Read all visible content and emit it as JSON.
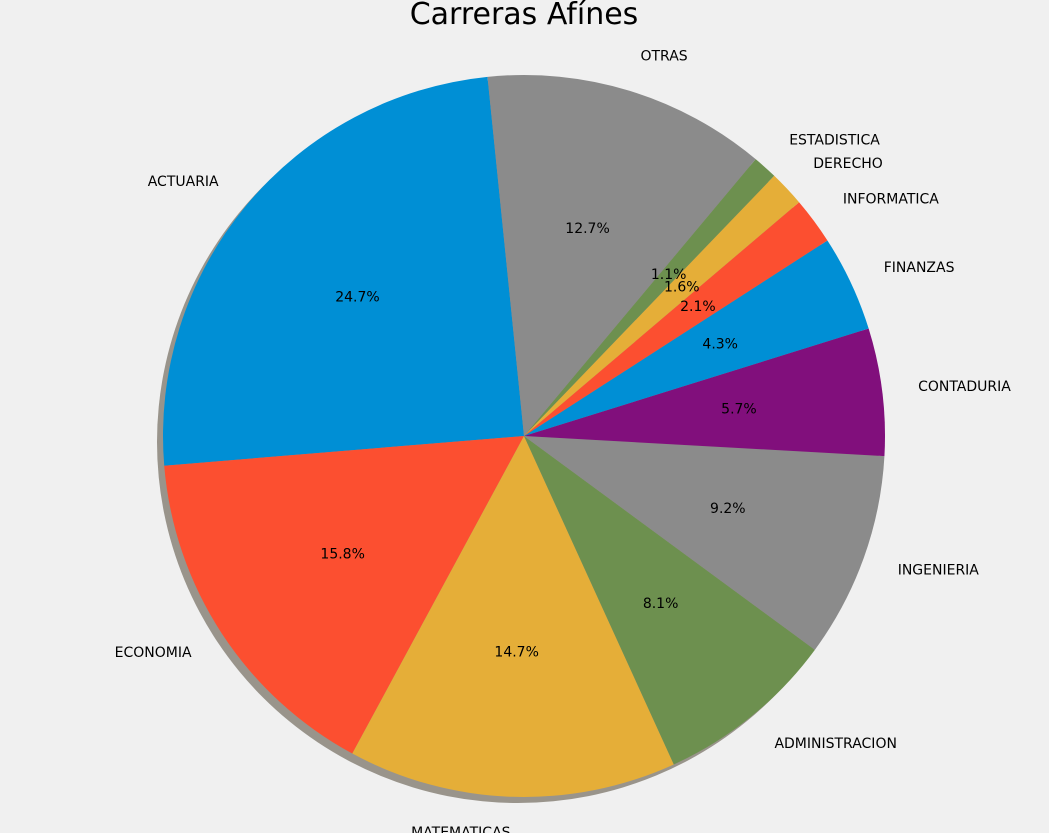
{
  "chart_data": {
    "type": "pie",
    "title": "Carreras Afínes",
    "shadow": true,
    "slices": [
      {
        "label": "ACTUARIA",
        "value": 24.7,
        "pct_label": "24.7%",
        "color": "#008fd5"
      },
      {
        "label": "ECONOMIA",
        "value": 15.8,
        "pct_label": "15.8%",
        "color": "#fc4f30"
      },
      {
        "label": "MATEMATICAS",
        "value": 14.7,
        "pct_label": "14.7%",
        "color": "#e5ae38"
      },
      {
        "label": "ADMINISTRACION",
        "value": 8.1,
        "pct_label": "8.1%",
        "color": "#6d904f"
      },
      {
        "label": "INGENIERIA",
        "value": 9.2,
        "pct_label": "9.2%",
        "color": "#8b8b8b"
      },
      {
        "label": "CONTADURIA",
        "value": 5.7,
        "pct_label": "5.7%",
        "color": "#810f7c"
      },
      {
        "label": "FINANZAS",
        "value": 4.3,
        "pct_label": "4.3%",
        "color": "#008fd5"
      },
      {
        "label": "INFORMATICA",
        "value": 2.1,
        "pct_label": "2.1%",
        "color": "#fc4f30"
      },
      {
        "label": "DERECHO",
        "value": 1.6,
        "pct_label": "1.6%",
        "color": "#e5ae38"
      },
      {
        "label": "ESTADISTICA",
        "value": 1.1,
        "pct_label": "1.1%",
        "color": "#6d904f"
      },
      {
        "label": "OTRAS",
        "value": 12.7,
        "pct_label": "12.7%",
        "color": "#8b8b8b"
      }
    ]
  }
}
